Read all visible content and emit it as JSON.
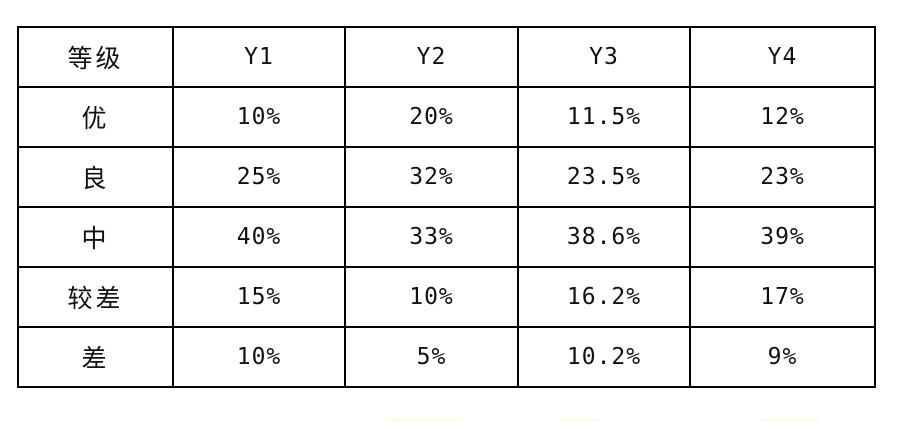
{
  "table": {
    "header": [
      "等级",
      "Y1",
      "Y2",
      "Y3",
      "Y4"
    ],
    "rows": [
      [
        "优",
        "10%",
        "20%",
        "11.5%",
        "12%"
      ],
      [
        "良",
        "25%",
        "32%",
        "23.5%",
        "23%"
      ],
      [
        "中",
        "40%",
        "33%",
        "38.6%",
        "39%"
      ],
      [
        "较差",
        "15%",
        "10%",
        "16.2%",
        "17%"
      ],
      [
        "差",
        "10%",
        "5%",
        "10.2%",
        "9%"
      ]
    ]
  }
}
